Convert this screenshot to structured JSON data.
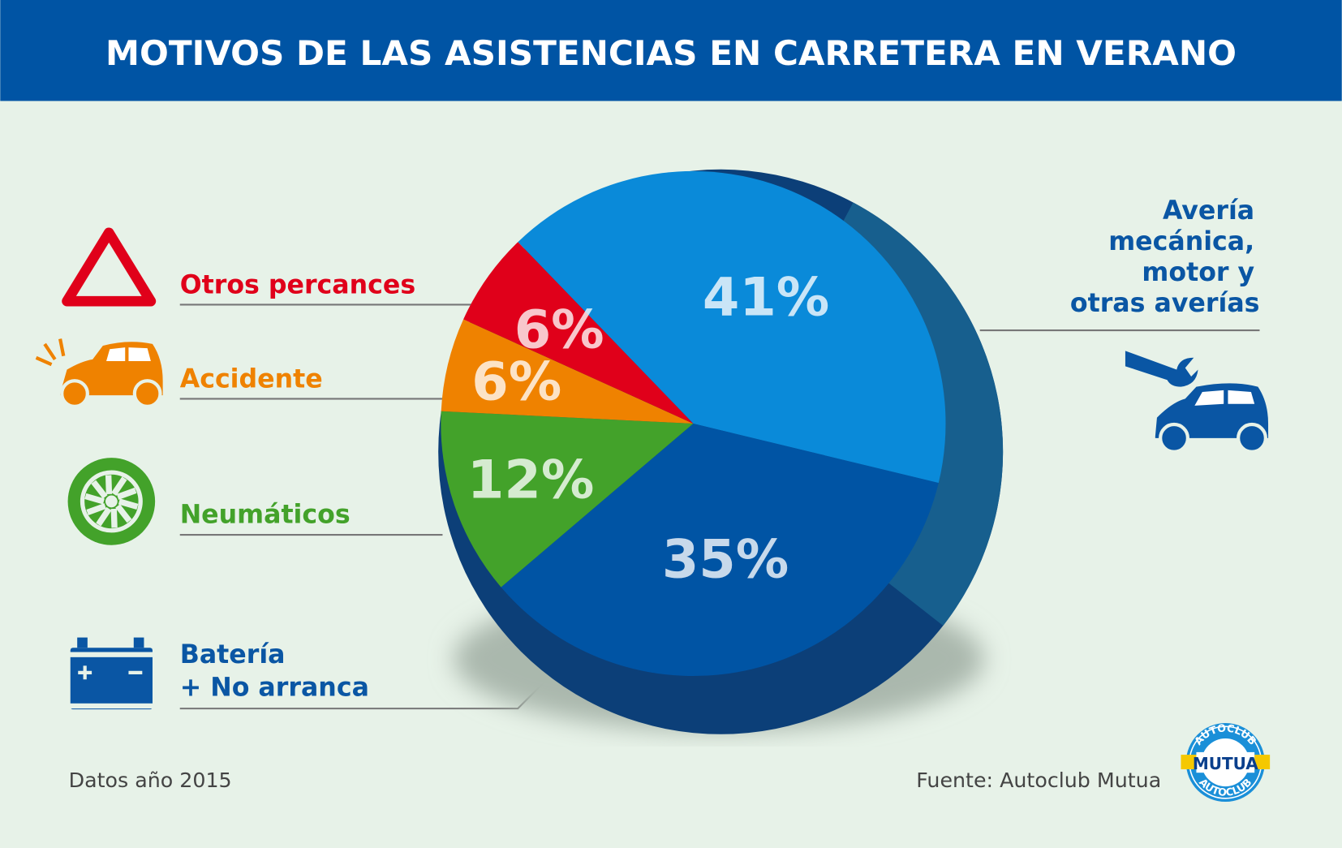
{
  "title": "MOTIVOS DE LAS ASISTENCIAS EN CARRETERA EN VERANO",
  "footer": {
    "left": "Datos año 2015",
    "right": "Fuente: Autoclub Mutua"
  },
  "logo": {
    "top": "AUTOCLUB",
    "middle": "MUTUA",
    "bottom": "AUTOCLUB"
  },
  "colors": {
    "header": "#0054a4",
    "background": "#e7f2e8"
  },
  "chart_data": {
    "type": "pie",
    "title": "MOTIVOS DE LAS ASISTENCIAS EN CARRETERA EN VERANO",
    "unit": "%",
    "slices": [
      {
        "label": "Avería mecánica, motor y otras averías",
        "lines": [
          "Avería",
          "mecánica,",
          "motor y",
          "otras averías"
        ],
        "value": 41,
        "display": "41%",
        "color": "#0a8ad9",
        "text_color": "#0a56a4"
      },
      {
        "label": "Batería + No arranca",
        "lines": [
          "Batería",
          "+ No arranca"
        ],
        "value": 35,
        "display": "35%",
        "color": "#0054a4",
        "text_color": "#0a56a4"
      },
      {
        "label": "Neumáticos",
        "lines": [
          "Neumáticos"
        ],
        "value": 12,
        "display": "12%",
        "color": "#43a22a",
        "text_color": "#43a22a"
      },
      {
        "label": "Accidente",
        "lines": [
          "Accidente"
        ],
        "value": 6,
        "display": "6%",
        "color": "#ef8200",
        "text_color": "#ef8200"
      },
      {
        "label": "Otros percances",
        "lines": [
          "Otros percances"
        ],
        "value": 6,
        "display": "6%",
        "color": "#e0001a",
        "text_color": "#e0001a"
      }
    ]
  }
}
